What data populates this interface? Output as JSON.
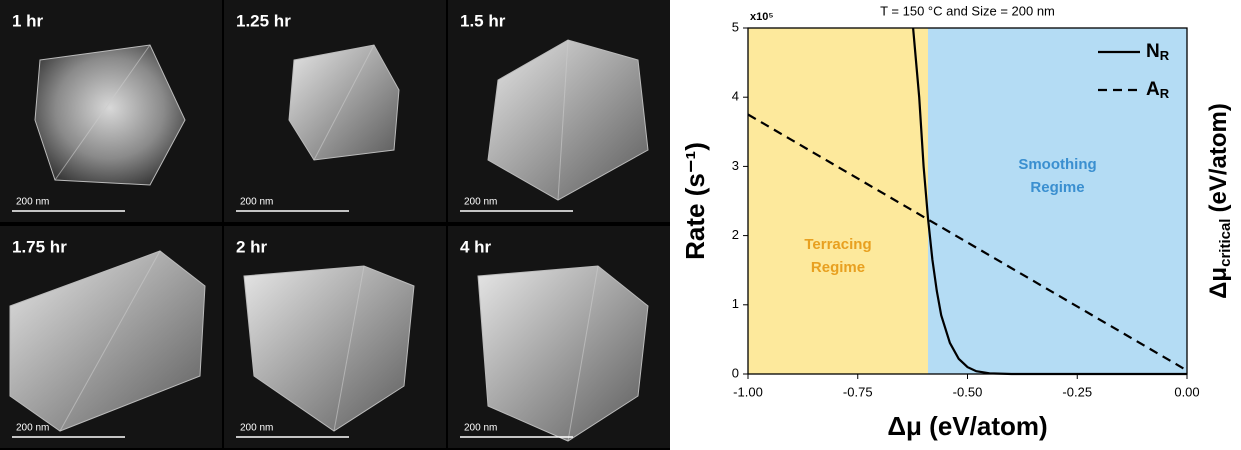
{
  "panels": [
    {
      "label": "1 hr",
      "scale": "200 nm"
    },
    {
      "label": "1.25 hr",
      "scale": "200 nm"
    },
    {
      "label": "1.5 hr",
      "scale": "200 nm"
    },
    {
      "label": "1.75 hr",
      "scale": "200 nm"
    },
    {
      "label": "2 hr",
      "scale": "200 nm"
    },
    {
      "label": "4 hr",
      "scale": "200 nm"
    }
  ],
  "chart_data": {
    "type": "line",
    "title": "T = 150 °C and Size = 200 nm",
    "x_label": "Δμ (eV/atom)",
    "y_label": "Rate (s⁻¹)",
    "y_multiplier": "x10⁵",
    "y2_label": {
      "symbol": "Δμ",
      "subscript": "critical",
      "unit": "(eV/atom)"
    },
    "xlim": [
      -1,
      0
    ],
    "xticks": [
      {
        "value": -1,
        "label": "-1.00"
      },
      {
        "value": -0.75,
        "label": "-0.75"
      },
      {
        "value": -0.5,
        "label": "-0.50"
      },
      {
        "value": -0.25,
        "label": "-0.25"
      },
      {
        "value": 0,
        "label": "0.00"
      }
    ],
    "ylim": [
      0,
      5
    ],
    "yticks": [
      0,
      1,
      2,
      3,
      4,
      5
    ],
    "regions": [
      {
        "label_lines": [
          "Terracing",
          "Regime"
        ],
        "from": -1,
        "to": -0.59,
        "color": "#fde99c",
        "text_color": "#e8a020"
      },
      {
        "label_lines": [
          "Smoothing",
          "Regime"
        ],
        "from": -0.59,
        "to": 0,
        "color": "#b4dcf4",
        "text_color": "#3a8fd0"
      }
    ],
    "legend": "upper right",
    "series": [
      {
        "name": "N",
        "name_sub": "R",
        "color": "#000000",
        "dash": false,
        "x": [
          -0.624,
          -0.61,
          -0.6,
          -0.59,
          -0.58,
          -0.57,
          -0.56,
          -0.54,
          -0.52,
          -0.5,
          -0.48,
          -0.45,
          -0.4,
          0
        ],
        "values": [
          5,
          4.0,
          3.0,
          2.25,
          1.65,
          1.2,
          0.85,
          0.45,
          0.22,
          0.1,
          0.04,
          0.01,
          0,
          0
        ]
      },
      {
        "name": "A",
        "name_sub": "R",
        "color": "#000000",
        "dash": true,
        "x": [
          -1,
          0
        ],
        "values": [
          3.75,
          0.05
        ]
      }
    ]
  }
}
